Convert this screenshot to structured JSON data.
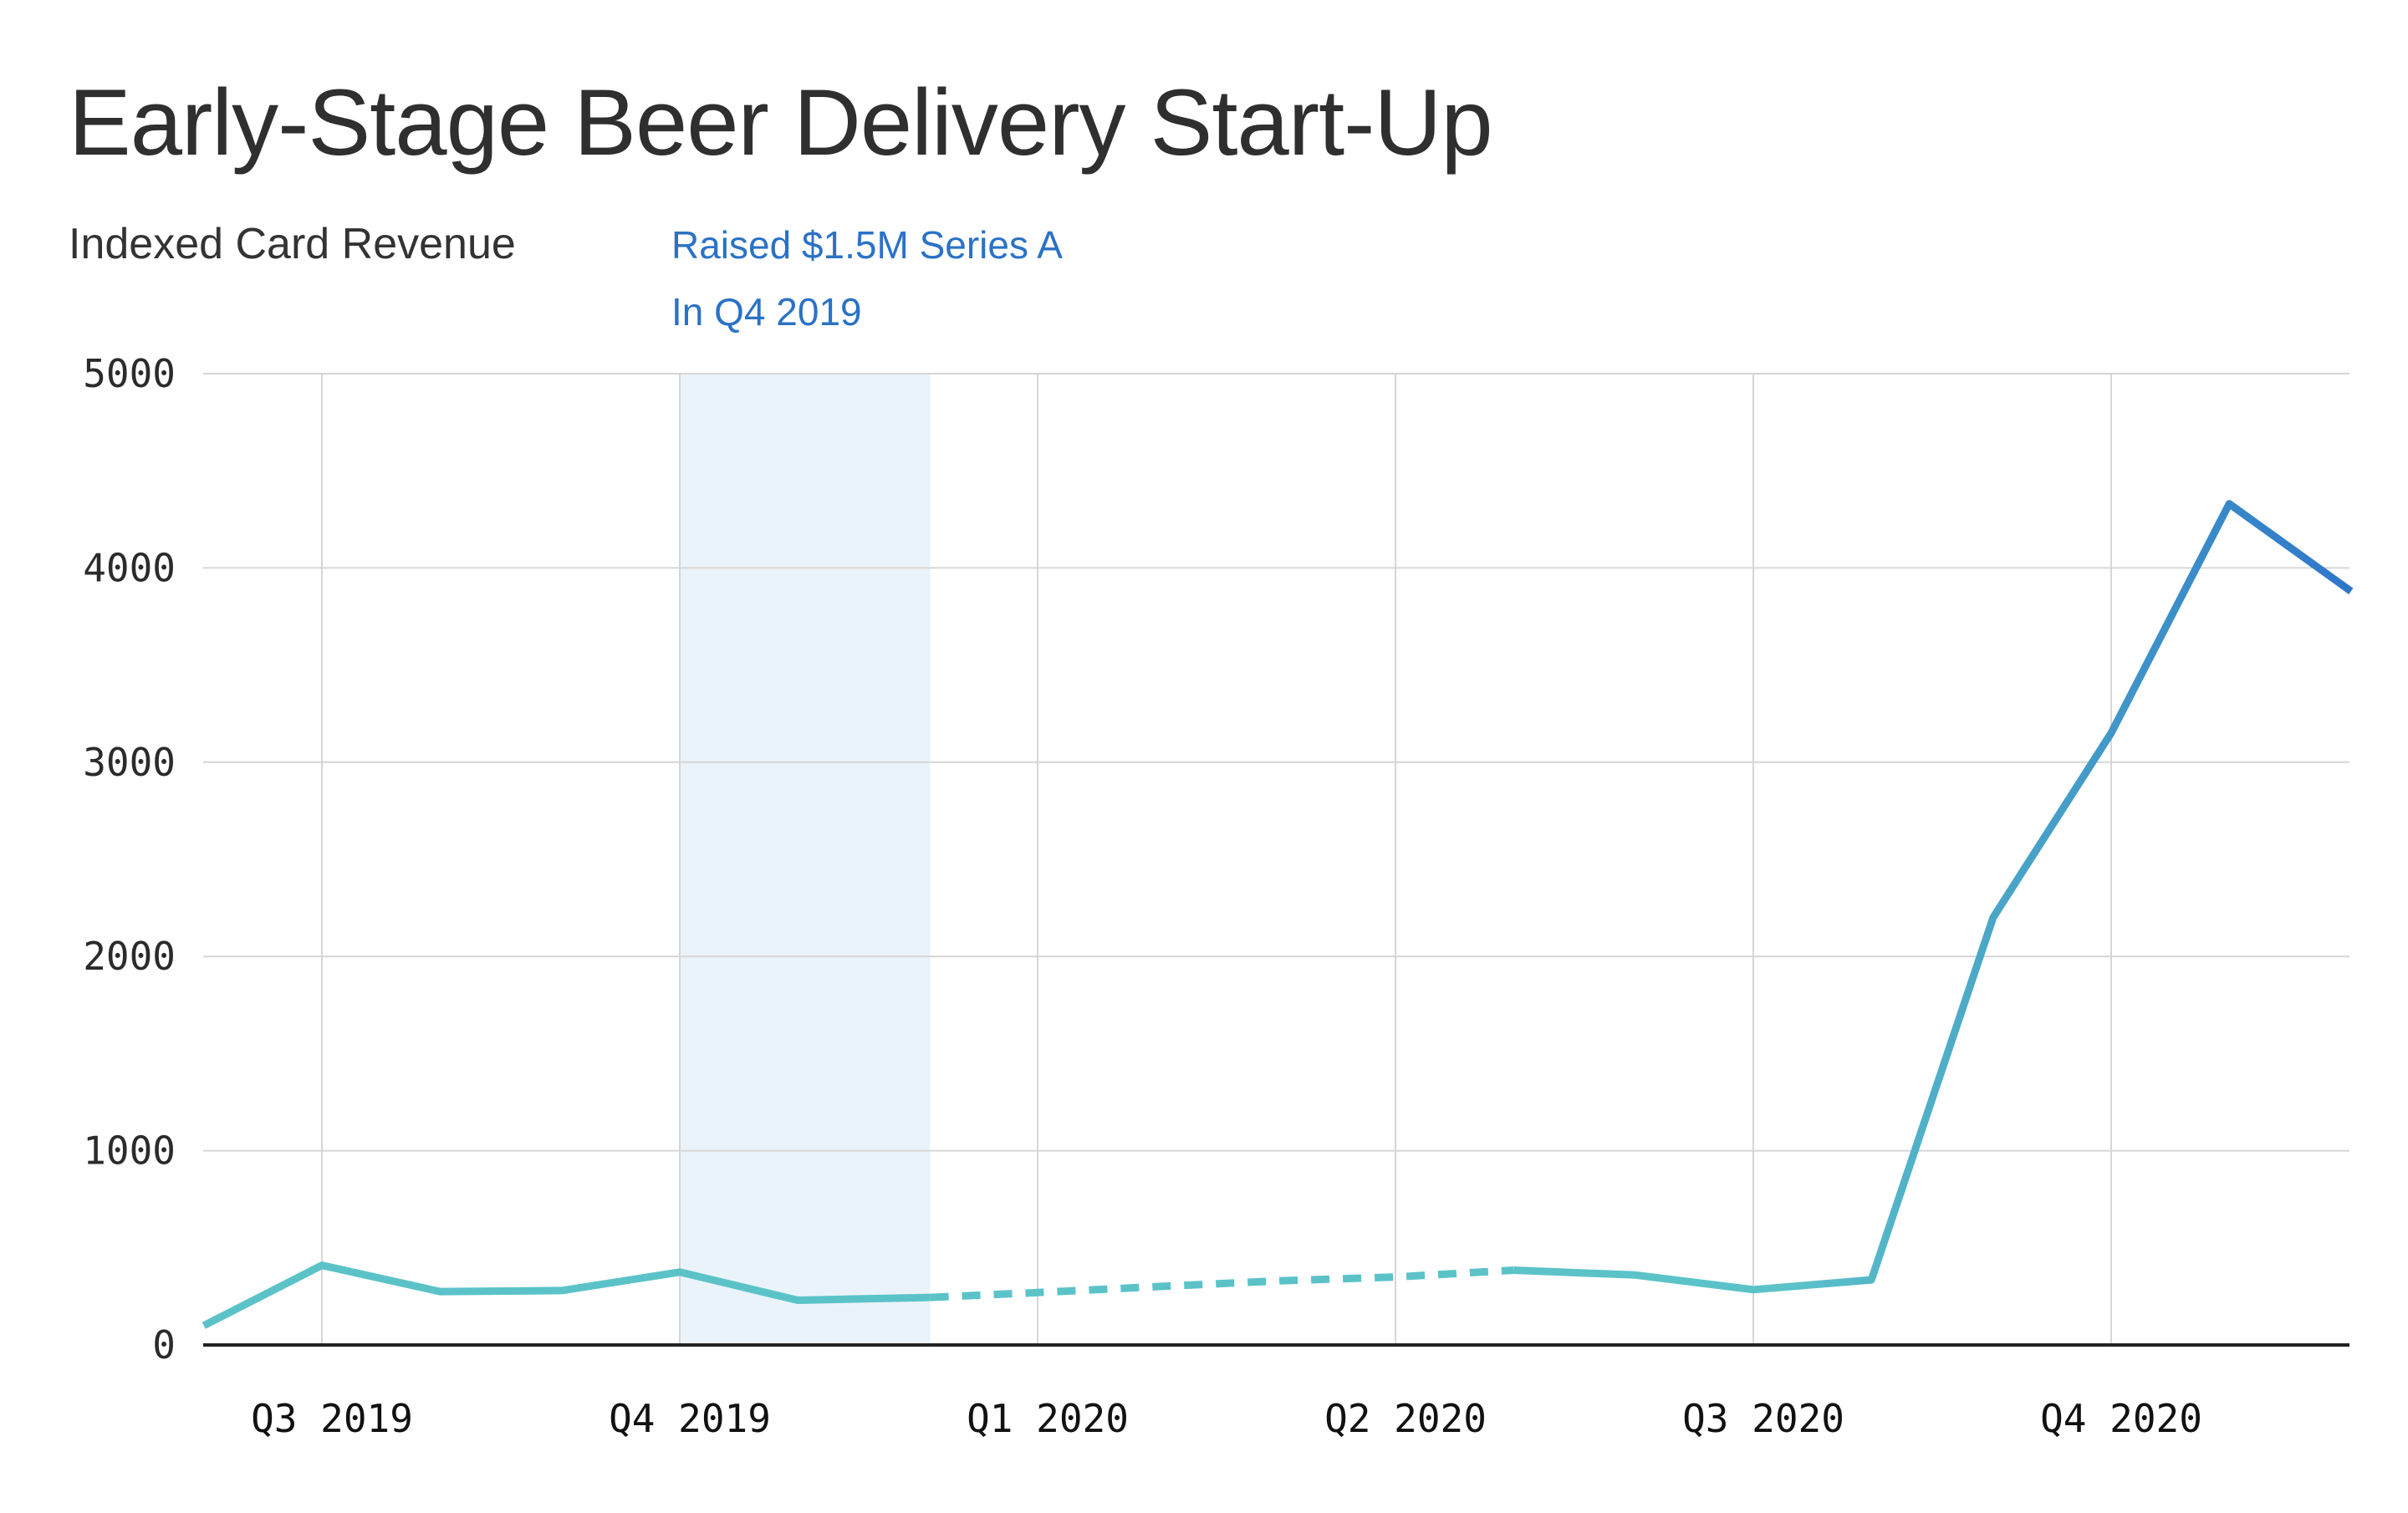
{
  "chart_data": {
    "type": "line",
    "title": "Early-Stage Beer Delivery Start-Up",
    "subtitle": "Indexed Card Revenue",
    "annotation": {
      "lines": [
        "Raised $1.5M Series A",
        "In Q4 2019"
      ],
      "color": "#2a72c6",
      "shaded_range": [
        "Q4 2019",
        "Q1 2020"
      ]
    },
    "ylim": [
      0,
      5000
    ],
    "y_ticks": [
      "5000",
      "4000",
      "3000",
      "2000",
      "1000",
      "0"
    ],
    "x_ticks": [
      "Q3 2019",
      "Q4 2019",
      "Q1 2020",
      "Q2 2020",
      "Q3 2020",
      "Q4 2020"
    ],
    "x_range_quarters": [
      -0.33,
      5.67
    ],
    "grid": true,
    "colors": {
      "start": "#5bc3c8",
      "end": "#2a6fc9",
      "shade": "#ebf3fa",
      "grid": "#d6d6d6",
      "axis": "#222222"
    },
    "series": [
      {
        "style": "solid",
        "points": [
          {
            "x": -0.33,
            "y": 100
          },
          {
            "x": 0.0,
            "y": 410
          },
          {
            "x": 0.33,
            "y": 275
          },
          {
            "x": 0.67,
            "y": 280
          },
          {
            "x": 1.0,
            "y": 375
          },
          {
            "x": 1.33,
            "y": 230
          },
          {
            "x": 1.7,
            "y": 245
          }
        ]
      },
      {
        "style": "dashed",
        "points": [
          {
            "x": 1.7,
            "y": 245
          },
          {
            "x": 2.0,
            "y": 270
          },
          {
            "x": 2.33,
            "y": 300
          },
          {
            "x": 2.67,
            "y": 330
          },
          {
            "x": 3.0,
            "y": 350
          },
          {
            "x": 3.33,
            "y": 385
          }
        ]
      },
      {
        "style": "solid",
        "points": [
          {
            "x": 3.33,
            "y": 385
          },
          {
            "x": 3.67,
            "y": 360
          },
          {
            "x": 4.0,
            "y": 285
          },
          {
            "x": 4.33,
            "y": 335
          },
          {
            "x": 4.67,
            "y": 2200
          },
          {
            "x": 5.0,
            "y": 3150
          },
          {
            "x": 5.33,
            "y": 4330
          },
          {
            "x": 5.67,
            "y": 3880
          }
        ]
      }
    ]
  }
}
